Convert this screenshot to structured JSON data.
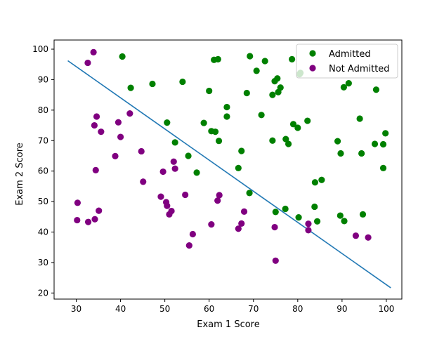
{
  "chart_data": {
    "type": "scatter",
    "title": "",
    "xlabel": "Exam 1 Score",
    "ylabel": "Exam 2 Score",
    "xlim": [
      25,
      103.5
    ],
    "ylim": [
      18,
      103
    ],
    "xticks": [
      30,
      40,
      50,
      60,
      70,
      80,
      90,
      100
    ],
    "yticks": [
      20,
      30,
      40,
      50,
      60,
      70,
      80,
      90,
      100
    ],
    "legend_position": "top-right",
    "series": [
      {
        "name": "Admitted",
        "color": "#008000",
        "points": [
          [
            40.4,
            97.6
          ],
          [
            42.3,
            87.3
          ],
          [
            47.2,
            88.6
          ],
          [
            50.5,
            75.9
          ],
          [
            52.3,
            69.4
          ],
          [
            54.0,
            89.3
          ],
          [
            55.3,
            65.0
          ],
          [
            57.2,
            59.5
          ],
          [
            58.8,
            75.8
          ],
          [
            60.0,
            86.3
          ],
          [
            60.5,
            73.1
          ],
          [
            61.1,
            96.5
          ],
          [
            61.4,
            72.9
          ],
          [
            62.0,
            96.7
          ],
          [
            62.2,
            69.9
          ],
          [
            64.0,
            81.0
          ],
          [
            64.0,
            77.9
          ],
          [
            66.6,
            61.0
          ],
          [
            67.3,
            66.6
          ],
          [
            68.5,
            85.6
          ],
          [
            69.1,
            52.8
          ],
          [
            69.2,
            97.7
          ],
          [
            70.7,
            92.9
          ],
          [
            71.8,
            78.4
          ],
          [
            72.6,
            96.1
          ],
          [
            74.3,
            85.0
          ],
          [
            74.3,
            70.0
          ],
          [
            74.8,
            89.5
          ],
          [
            75.0,
            46.6
          ],
          [
            75.4,
            90.4
          ],
          [
            75.6,
            85.9
          ],
          [
            76.1,
            87.4
          ],
          [
            77.2,
            47.6
          ],
          [
            77.3,
            70.5
          ],
          [
            77.9,
            68.9
          ],
          [
            78.7,
            96.7
          ],
          [
            79.0,
            75.4
          ],
          [
            80.0,
            74.2
          ],
          [
            80.2,
            44.8
          ],
          [
            80.4,
            91.8
          ],
          [
            80.6,
            92.2
          ],
          [
            82.2,
            76.5
          ],
          [
            83.8,
            48.3
          ],
          [
            83.9,
            56.3
          ],
          [
            84.4,
            43.5
          ],
          [
            85.4,
            57.1
          ],
          [
            89.0,
            69.8
          ],
          [
            89.6,
            45.4
          ],
          [
            89.7,
            65.8
          ],
          [
            90.4,
            87.5
          ],
          [
            90.5,
            43.6
          ],
          [
            91.5,
            88.8
          ],
          [
            94.0,
            77.2
          ],
          [
            94.4,
            65.8
          ],
          [
            94.7,
            45.8
          ],
          [
            97.4,
            68.9
          ],
          [
            97.7,
            86.7
          ],
          [
            99.3,
            68.8
          ],
          [
            99.3,
            61.0
          ],
          [
            99.8,
            72.4
          ]
        ]
      },
      {
        "name": "Not Admitted",
        "color": "#800080",
        "points": [
          [
            30.2,
            43.9
          ],
          [
            30.3,
            49.6
          ],
          [
            32.6,
            95.5
          ],
          [
            32.7,
            43.3
          ],
          [
            33.9,
            99.0
          ],
          [
            34.1,
            75.0
          ],
          [
            34.2,
            44.2
          ],
          [
            34.4,
            60.3
          ],
          [
            34.6,
            77.9
          ],
          [
            35.1,
            47.0
          ],
          [
            35.6,
            72.9
          ],
          [
            38.8,
            64.9
          ],
          [
            39.5,
            76.0
          ],
          [
            40.0,
            71.2
          ],
          [
            42.1,
            78.9
          ],
          [
            44.7,
            66.5
          ],
          [
            45.1,
            56.5
          ],
          [
            49.1,
            51.6
          ],
          [
            49.6,
            59.8
          ],
          [
            50.3,
            49.8
          ],
          [
            50.5,
            48.6
          ],
          [
            51.0,
            45.8
          ],
          [
            51.5,
            46.9
          ],
          [
            52.0,
            63.1
          ],
          [
            52.3,
            60.8
          ],
          [
            54.6,
            52.2
          ],
          [
            55.5,
            35.6
          ],
          [
            56.3,
            39.3
          ],
          [
            60.5,
            42.5
          ],
          [
            61.9,
            50.3
          ],
          [
            62.3,
            52.1
          ],
          [
            66.6,
            41.1
          ],
          [
            67.3,
            42.8
          ],
          [
            67.9,
            46.7
          ],
          [
            74.8,
            41.6
          ],
          [
            75.0,
            30.6
          ],
          [
            82.4,
            42.7
          ],
          [
            82.4,
            40.6
          ],
          [
            93.1,
            38.8
          ],
          [
            95.9,
            38.2
          ]
        ]
      }
    ],
    "decision_boundary": {
      "name": "Decision Boundary",
      "color": "#1f77b4",
      "x": [
        28.1,
        101.0
      ],
      "y": [
        96.2,
        21.7
      ]
    }
  }
}
